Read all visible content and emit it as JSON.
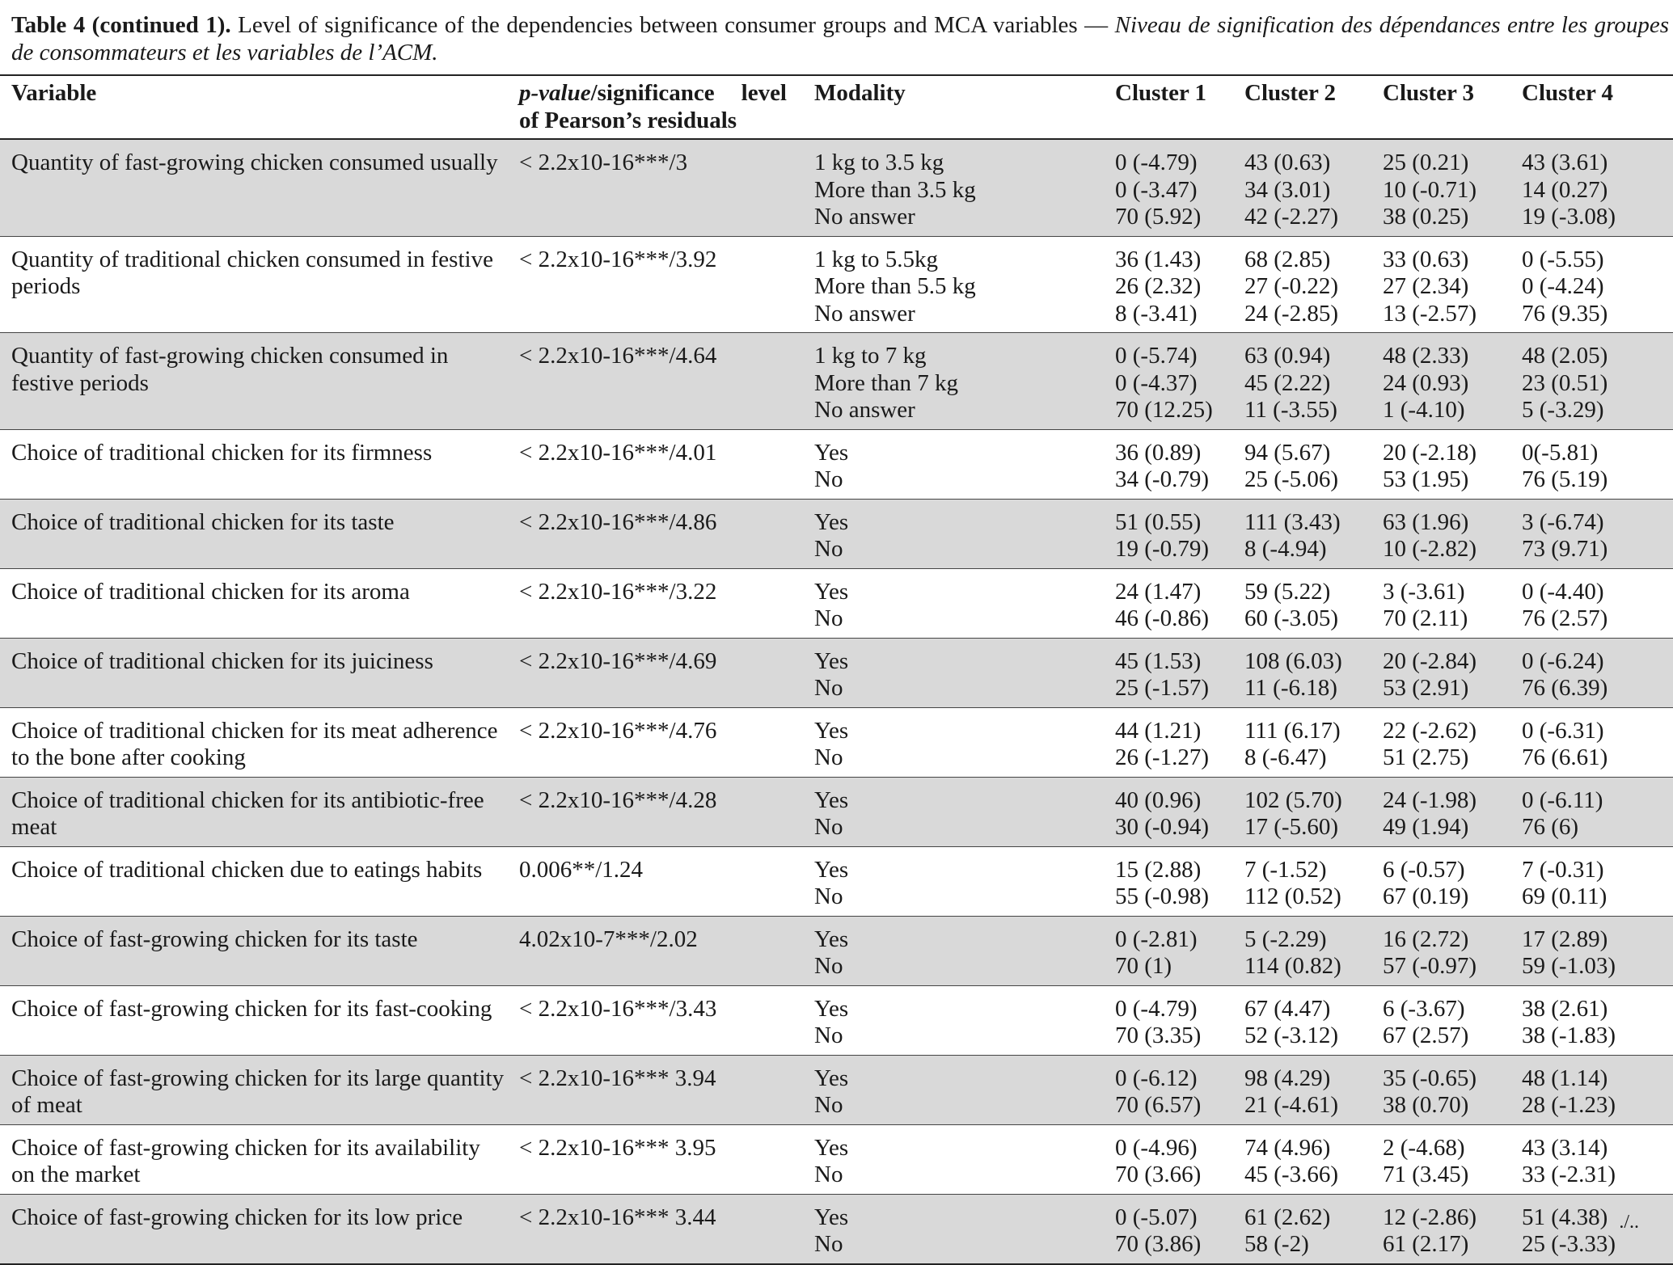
{
  "caption": {
    "label": "Table 4 (continued 1).",
    "english": " Level of significance of the dependencies between consumer groups and MCA variables — ",
    "french": "Niveau de signification des dépendances entre les groupes de consommateurs et les variables de l’ACM."
  },
  "table": {
    "headers": {
      "variable": "Variable",
      "pvalue_italic": "p-value",
      "pvalue_rest": "/significance level of Pearson’s residuals",
      "modality": "Modality",
      "cluster1": "Cluster 1",
      "cluster2": "Cluster 2",
      "cluster3": "Cluster 3",
      "cluster4": "Cluster 4"
    },
    "rows": [
      {
        "variable": "Quantity of fast-growing chicken consumed usually",
        "pvalue": "< 2.2x10-16***/3",
        "modalities": [
          "1 kg to 3.5 kg",
          "More than 3.5 kg",
          "No answer"
        ],
        "c1": [
          "0 (-4.79)",
          "0 (-3.47)",
          "70 (5.92)"
        ],
        "c2": [
          "43 (0.63)",
          "34 (3.01)",
          "42 (-2.27)"
        ],
        "c3": [
          "25 (0.21)",
          "10 (-0.71)",
          "38 (0.25)"
        ],
        "c4": [
          "43 (3.61)",
          "14 (0.27)",
          "19 (-3.08)"
        ]
      },
      {
        "variable": "Quantity of traditional chicken consumed in festive periods",
        "pvalue": "< 2.2x10-16***/3.92",
        "modalities": [
          "1 kg to 5.5kg",
          "More than 5.5 kg",
          "No answer"
        ],
        "c1": [
          "36 (1.43)",
          "26 (2.32)",
          "8 (-3.41)"
        ],
        "c2": [
          "68 (2.85)",
          "27 (-0.22)",
          "24 (-2.85)"
        ],
        "c3": [
          "33 (0.63)",
          "27 (2.34)",
          "13 (-2.57)"
        ],
        "c4": [
          "0 (-5.55)",
          "0 (-4.24)",
          "76 (9.35)"
        ]
      },
      {
        "variable": "Quantity of fast-growing chicken consumed in festive periods",
        "pvalue": "< 2.2x10-16***/4.64",
        "modalities": [
          "1 kg to 7 kg",
          "More than 7 kg",
          "No answer"
        ],
        "c1": [
          "0 (-5.74)",
          "0 (-4.37)",
          "70 (12.25)"
        ],
        "c2": [
          "63 (0.94)",
          "45 (2.22)",
          "11 (-3.55)"
        ],
        "c3": [
          "48 (2.33)",
          "24 (0.93)",
          "1 (-4.10)"
        ],
        "c4": [
          "48 (2.05)",
          "23 (0.51)",
          "5 (-3.29)"
        ]
      },
      {
        "variable": "Choice of traditional chicken for its firmness",
        "pvalue": "< 2.2x10-16***/4.01",
        "modalities": [
          "Yes",
          "No"
        ],
        "c1": [
          "36 (0.89)",
          "34 (-0.79)"
        ],
        "c2": [
          "94 (5.67)",
          "25 (-5.06)"
        ],
        "c3": [
          "20 (-2.18)",
          "53 (1.95)"
        ],
        "c4": [
          "0(-5.81)",
          "76 (5.19)"
        ]
      },
      {
        "variable": "Choice of traditional chicken for its taste",
        "pvalue": "< 2.2x10-16***/4.86",
        "modalities": [
          "Yes",
          "No"
        ],
        "c1": [
          "51 (0.55)",
          "19 (-0.79)"
        ],
        "c2": [
          "111 (3.43)",
          "8 (-4.94)"
        ],
        "c3": [
          "63 (1.96)",
          "10 (-2.82)"
        ],
        "c4": [
          "3 (-6.74)",
          "73 (9.71)"
        ]
      },
      {
        "variable": "Choice of traditional chicken for its aroma",
        "pvalue": "< 2.2x10-16***/3.22",
        "modalities": [
          "Yes",
          "No"
        ],
        "c1": [
          "24 (1.47)",
          "46 (-0.86)"
        ],
        "c2": [
          "59 (5.22)",
          "60 (-3.05)"
        ],
        "c3": [
          "3 (-3.61)",
          "70 (2.11)"
        ],
        "c4": [
          "0 (-4.40)",
          "76 (2.57)"
        ]
      },
      {
        "variable": "Choice of traditional chicken for its juiciness",
        "pvalue": "< 2.2x10-16***/4.69",
        "modalities": [
          "Yes",
          "No"
        ],
        "c1": [
          "45 (1.53)",
          "25 (-1.57)"
        ],
        "c2": [
          "108 (6.03)",
          "11 (-6.18)"
        ],
        "c3": [
          "20 (-2.84)",
          "53 (2.91)"
        ],
        "c4": [
          "0 (-6.24)",
          "76 (6.39)"
        ]
      },
      {
        "variable": "Choice of traditional chicken for its meat adherence to the bone after cooking",
        "pvalue": "< 2.2x10-16***/4.76",
        "modalities": [
          "Yes",
          "No"
        ],
        "c1": [
          "44 (1.21)",
          "26 (-1.27)"
        ],
        "c2": [
          "111 (6.17)",
          "8 (-6.47)"
        ],
        "c3": [
          "22 (-2.62)",
          "51 (2.75)"
        ],
        "c4": [
          "0 (-6.31)",
          "76 (6.61)"
        ]
      },
      {
        "variable": "Choice of traditional chicken for its antibiotic-free meat",
        "pvalue": "< 2.2x10-16***/4.28",
        "modalities": [
          "Yes",
          "No"
        ],
        "c1": [
          "40 (0.96)",
          "30 (-0.94)"
        ],
        "c2": [
          "102 (5.70)",
          "17 (-5.60)"
        ],
        "c3": [
          "24 (-1.98)",
          "49 (1.94)"
        ],
        "c4": [
          "0 (-6.11)",
          "76 (6)"
        ]
      },
      {
        "variable": "Choice of traditional chicken due to eatings habits",
        "pvalue": "0.006**/1.24",
        "modalities": [
          "Yes",
          "No"
        ],
        "c1": [
          "15 (2.88)",
          "55 (-0.98)"
        ],
        "c2": [
          "7 (-1.52)",
          "112 (0.52)"
        ],
        "c3": [
          "6 (-0.57)",
          "67 (0.19)"
        ],
        "c4": [
          "7 (-0.31)",
          "69 (0.11)"
        ]
      },
      {
        "variable": "Choice of fast-growing chicken for its taste",
        "pvalue": "4.02x10-7***/2.02",
        "modalities": [
          "Yes",
          "No"
        ],
        "c1": [
          "0 (-2.81)",
          "70 (1)"
        ],
        "c2": [
          "5 (-2.29)",
          "114 (0.82)"
        ],
        "c3": [
          "16 (2.72)",
          "57 (-0.97)"
        ],
        "c4": [
          "17 (2.89)",
          "59 (-1.03)"
        ]
      },
      {
        "variable": "Choice of fast-growing chicken for its fast-cooking",
        "pvalue": "< 2.2x10-16***/3.43",
        "modalities": [
          "Yes",
          "No"
        ],
        "c1": [
          "0 (-4.79)",
          "70 (3.35)"
        ],
        "c2": [
          "67 (4.47)",
          "52 (-3.12)"
        ],
        "c3": [
          "6 (-3.67)",
          "67 (2.57)"
        ],
        "c4": [
          "38 (2.61)",
          "38 (-1.83)"
        ]
      },
      {
        "variable": "Choice of fast-growing chicken for its large quantity of meat",
        "pvalue": "< 2.2x10-16*** 3.94",
        "modalities": [
          "Yes",
          "No"
        ],
        "c1": [
          "0 (-6.12)",
          "70 (6.57)"
        ],
        "c2": [
          "98 (4.29)",
          "21 (-4.61)"
        ],
        "c3": [
          "35 (-0.65)",
          "38 (0.70)"
        ],
        "c4": [
          "48 (1.14)",
          "28 (-1.23)"
        ]
      },
      {
        "variable": "Choice of fast-growing chicken for its availability on the market",
        "pvalue": "< 2.2x10-16*** 3.95",
        "modalities": [
          "Yes",
          "No"
        ],
        "c1": [
          "0 (-4.96)",
          "70 (3.66)"
        ],
        "c2": [
          "74 (4.96)",
          "45 (-3.66)"
        ],
        "c3": [
          "2 (-4.68)",
          "71 (3.45)"
        ],
        "c4": [
          "43 (3.14)",
          "33 (-2.31)"
        ]
      },
      {
        "variable": "Choice of fast-growing chicken for its low price",
        "pvalue": "< 2.2x10-16*** 3.44",
        "modalities": [
          "Yes",
          "No"
        ],
        "c1": [
          "0 (-5.07)",
          "70 (3.86)"
        ],
        "c2": [
          "61 (2.62)",
          "58 (-2)"
        ],
        "c3": [
          "12 (-2.86)",
          "61 (2.17)"
        ],
        "c4": [
          "51 (4.38)",
          "25 (-3.33)"
        ]
      }
    ]
  },
  "continued_mark": "./.."
}
